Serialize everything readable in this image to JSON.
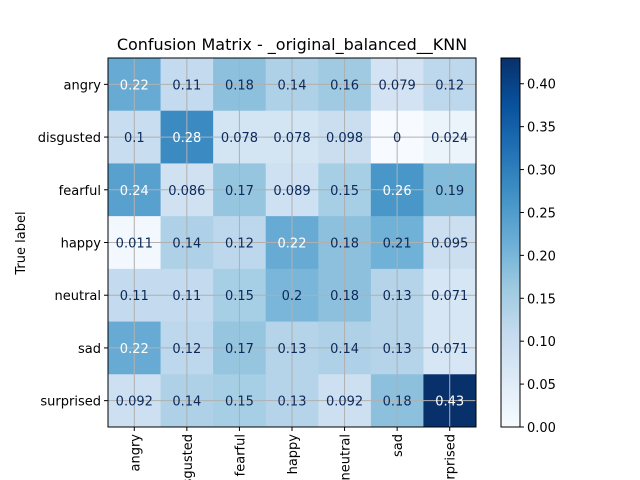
{
  "chart_data": {
    "type": "heatmap",
    "title": "Confusion Matrix - _original_balanced__KNN",
    "ylabel": "True label",
    "xlabel": "",
    "row_labels": [
      "angry",
      "disgusted",
      "fearful",
      "happy",
      "neutral",
      "sad",
      "surprised"
    ],
    "col_labels": [
      "angry",
      "disgusted",
      "fearful",
      "happy",
      "neutral",
      "sad",
      "surprised"
    ],
    "values": [
      [
        0.22,
        0.11,
        0.18,
        0.14,
        0.16,
        0.079,
        0.12
      ],
      [
        0.1,
        0.28,
        0.078,
        0.078,
        0.098,
        0,
        0.024
      ],
      [
        0.24,
        0.086,
        0.17,
        0.089,
        0.15,
        0.26,
        0.19
      ],
      [
        0.011,
        0.14,
        0.12,
        0.22,
        0.18,
        0.21,
        0.095
      ],
      [
        0.11,
        0.11,
        0.15,
        0.2,
        0.18,
        0.13,
        0.071
      ],
      [
        0.22,
        0.12,
        0.17,
        0.13,
        0.14,
        0.13,
        0.071
      ],
      [
        0.092,
        0.14,
        0.15,
        0.13,
        0.092,
        0.18,
        0.43
      ]
    ],
    "colorbar": {
      "min": 0,
      "max": 0.43,
      "ticks": [
        "0.00",
        "0.05",
        "0.10",
        "0.15",
        "0.20",
        "0.25",
        "0.30",
        "0.35",
        "0.40"
      ],
      "colormap": "Blues"
    },
    "grid": true
  }
}
